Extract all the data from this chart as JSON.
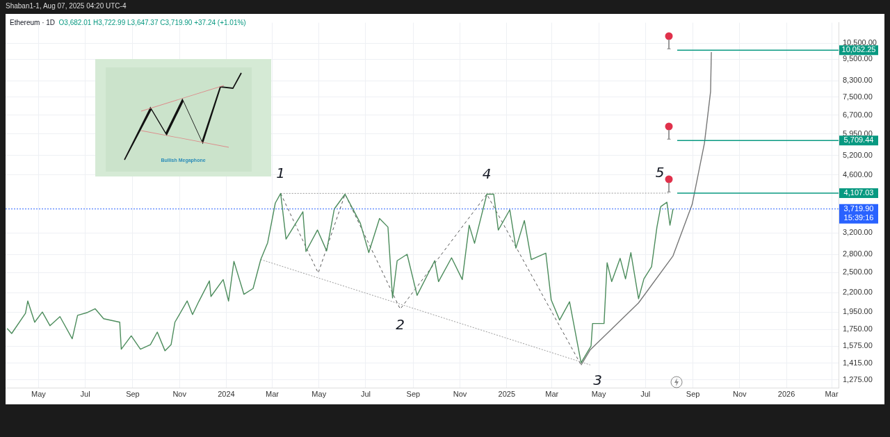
{
  "chart_data": {
    "type": "line",
    "title": "Ethereum · 1D",
    "subtitle": "O3,682.01 H3,722.99 L3,647.37 C3,719.90 +37.24 (+1.01%)",
    "series": [
      {
        "color": "#4c8c5c",
        "x": [
          "2023-03-21",
          "2023-03-27",
          "2023-04-14",
          "2023-04-17",
          "2023-04-26",
          "2023-05-06",
          "2023-05-16",
          "2023-05-29",
          "2023-06-14",
          "2023-06-21",
          "2023-07-04",
          "2023-07-14",
          "2023-07-25",
          "2023-08-15",
          "2023-08-17",
          "2023-08-30",
          "2023-09-11",
          "2023-09-24",
          "2023-10-03",
          "2023-10-13",
          "2023-10-21",
          "2023-10-26",
          "2023-11-11",
          "2023-11-18",
          "2023-11-26",
          "2023-12-10",
          "2023-12-12",
          "2023-12-28",
          "2024-01-04",
          "2024-01-11",
          "2024-01-24",
          "2024-02-05",
          "2024-02-15",
          "2024-02-24",
          "2024-03-05",
          "2024-03-12",
          "2024-03-19",
          "2024-04-10",
          "2024-04-14",
          "2024-04-29",
          "2024-05-11",
          "2024-05-21",
          "2024-06-04",
          "2024-06-24",
          "2024-07-05",
          "2024-07-19",
          "2024-07-30",
          "2024-08-05",
          "2024-08-11",
          "2024-08-24",
          "2024-09-06",
          "2024-09-29",
          "2024-10-04",
          "2024-10-21",
          "2024-11-04",
          "2024-11-13",
          "2024-11-20",
          "2024-12-06",
          "2024-12-15",
          "2024-12-21",
          "2025-01-05",
          "2025-01-13",
          "2025-01-24",
          "2025-02-02",
          "2025-02-21",
          "2025-02-28",
          "2025-03-11",
          "2025-03-24",
          "2025-04-08",
          "2025-04-21",
          "2025-04-23",
          "2025-05-08",
          "2025-05-12",
          "2025-05-18",
          "2025-05-29",
          "2025-06-05",
          "2025-06-12",
          "2025-06-22",
          "2025-06-29",
          "2025-07-09",
          "2025-07-16",
          "2025-07-21",
          "2025-07-29",
          "2025-08-02",
          "2025-08-06"
        ],
        "values": [
          1760,
          1705,
          1935,
          2090,
          1830,
          1950,
          1790,
          1895,
          1650,
          1910,
          1945,
          1990,
          1870,
          1830,
          1545,
          1680,
          1545,
          1590,
          1720,
          1530,
          1590,
          1830,
          2090,
          1920,
          2080,
          2370,
          2150,
          2390,
          2090,
          2680,
          2180,
          2260,
          2710,
          3010,
          3860,
          4100,
          3080,
          3655,
          2850,
          3260,
          2860,
          3720,
          4080,
          3400,
          2830,
          3505,
          3320,
          2130,
          2690,
          2800,
          2165,
          2690,
          2360,
          2740,
          2390,
          3360,
          3000,
          4080,
          4080,
          3260,
          3700,
          2910,
          3460,
          2710,
          2820,
          2105,
          1855,
          2080,
          1420,
          1575,
          1815,
          1815,
          2655,
          2360,
          2730,
          2400,
          2830,
          2120,
          2400,
          2590,
          3320,
          3775,
          3880,
          3360,
          3719.9
        ]
      },
      {
        "color": "#555555",
        "line_style": "dashed",
        "x": [
          "2024-03-12",
          "2024-04-30",
          "2024-06-04",
          "2024-08-15",
          "2024-12-06",
          "2025-04-08"
        ],
        "values": [
          4100,
          2490,
          4080,
          1987,
          4080,
          1400
        ]
      },
      {
        "color": "#9a9a9a",
        "line_style": "dotted",
        "x": [
          "2024-02-15",
          "2025-04-20"
        ],
        "values": [
          2710,
          1400
        ]
      },
      {
        "color": "#9a9a9a",
        "line_style": "dotted",
        "x": [
          "2024-03-12",
          "2025-08-01"
        ],
        "values": [
          4100,
          4107
        ]
      },
      {
        "color": "#777777",
        "x": [
          "2025-04-08",
          "2025-04-20",
          "2025-06-22",
          "2025-08-06",
          "2025-08-31",
          "2025-09-16",
          "2025-09-24",
          "2025-09-25"
        ],
        "values": [
          1400,
          1540,
          2065,
          2772,
          3830,
          5615,
          7760,
          9935
        ]
      }
    ],
    "xlim": [
      "2023-03-19",
      "2026-03-10"
    ],
    "xticks": [
      {
        "value": "2023-05-01",
        "label": "May"
      },
      {
        "value": "2023-07-01",
        "label": "Jul"
      },
      {
        "value": "2023-09-01",
        "label": "Sep"
      },
      {
        "value": "2023-11-01",
        "label": "Nov"
      },
      {
        "value": "2024-01-01",
        "label": "2024"
      },
      {
        "value": "2024-03-01",
        "label": "Mar"
      },
      {
        "value": "2024-05-01",
        "label": "May"
      },
      {
        "value": "2024-07-01",
        "label": "Jul"
      },
      {
        "value": "2024-09-01",
        "label": "Sep"
      },
      {
        "value": "2024-11-01",
        "label": "Nov"
      },
      {
        "value": "2025-01-01",
        "label": "2025"
      },
      {
        "value": "2025-03-01",
        "label": "Mar"
      },
      {
        "value": "2025-05-01",
        "label": "May"
      },
      {
        "value": "2025-07-01",
        "label": "Jul"
      },
      {
        "value": "2025-09-01",
        "label": "Sep"
      },
      {
        "value": "2025-11-01",
        "label": "Nov"
      },
      {
        "value": "2026-01-01",
        "label": "2026"
      },
      {
        "value": "2026-03-01",
        "label": "Mar"
      }
    ],
    "ylim": [
      1210,
      11950
    ],
    "yticks": [
      {
        "value": 1275,
        "label": "1,275.00"
      },
      {
        "value": 1415,
        "label": "1,415.00"
      },
      {
        "value": 1575,
        "label": "1,575.00"
      },
      {
        "value": 1750,
        "label": "1,750.00"
      },
      {
        "value": 1950,
        "label": "1,950.00"
      },
      {
        "value": 2200,
        "label": "2,200.00"
      },
      {
        "value": 2500,
        "label": "2,500.00"
      },
      {
        "value": 2800,
        "label": "2,800.00"
      },
      {
        "value": 3200,
        "label": "3,200.00"
      },
      {
        "value": 4600,
        "label": "4,600.00"
      },
      {
        "value": 5200,
        "label": "5,200.00"
      },
      {
        "value": 5950,
        "label": "5,950.00"
      },
      {
        "value": 6700,
        "label": "6,700.00"
      },
      {
        "value": 7500,
        "label": "7,500.00"
      },
      {
        "value": 8300,
        "label": "8,300.00"
      },
      {
        "value": 9500,
        "label": "9,500.00"
      },
      {
        "value": 10500,
        "label": "10,500.00"
      }
    ],
    "log": true,
    "grid": true,
    "legend": false,
    "marker": "none",
    "ref_lines": [
      {
        "axis": "y",
        "value": 10052.25,
        "label": "10,052.25",
        "color": "#089981",
        "line_style": "solid"
      },
      {
        "axis": "y",
        "value": 5709.44,
        "label": "5,709.44",
        "color": "#089981",
        "line_style": "solid"
      },
      {
        "axis": "y",
        "value": 4107.03,
        "label": "4,107.03",
        "color": "#089981",
        "line_style": "solid"
      },
      {
        "axis": "y",
        "value": 3719.9,
        "label": "3,719.90\n15:39:16",
        "color": "#2962ff",
        "line_style": "dotted"
      }
    ],
    "annotations": [
      "Shaban1-1, Aug 07, 2025 04:20 UTC-4",
      "Bullish Megaphone",
      {
        "text": "1",
        "x": "2024-03-12",
        "y": 4100
      },
      {
        "text": "2",
        "x": "2024-08-15",
        "y": 1987
      },
      {
        "text": "3",
        "x": "2025-04-08",
        "y": 1400
      },
      {
        "text": "4",
        "x": "2024-12-06",
        "y": 4080
      },
      {
        "text": "5",
        "x": "2025-07-20",
        "y": 4107.03
      }
    ]
  }
}
